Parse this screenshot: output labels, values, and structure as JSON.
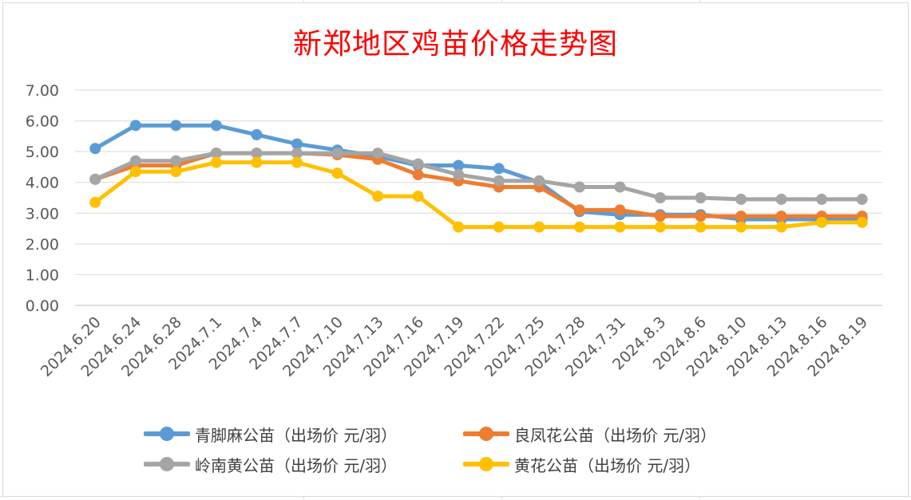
{
  "chart_data": {
    "type": "line",
    "title": "新郑地区鸡苗价格走势图",
    "categories": [
      "2024.6.20",
      "2024.6.24",
      "2024.6.28",
      "2024.7.1",
      "2024.7.4",
      "2024.7.7",
      "2024.7.10",
      "2024.7.13",
      "2024.7.16",
      "2024.7.19",
      "2024.7.22",
      "2024.7.25",
      "2024.7.28",
      "2024.7.31",
      "2024.8.3",
      "2024.8.6",
      "2024.8.10",
      "2024.8.13",
      "2024.8.16",
      "2024.8.19"
    ],
    "y_ticks": [
      "0.00",
      "1.00",
      "2.00",
      "3.00",
      "4.00",
      "5.00",
      "6.00",
      "7.00"
    ],
    "ylim": [
      0,
      7
    ],
    "grid": true,
    "legend_position": "bottom",
    "series": [
      {
        "name": "青脚麻公苗（出场价 元/羽）",
        "color": "#5b9bd5",
        "values": [
          5.1,
          5.85,
          5.85,
          5.85,
          5.55,
          5.25,
          5.05,
          4.85,
          4.55,
          4.55,
          4.45,
          4.0,
          3.05,
          2.95,
          2.95,
          2.95,
          2.8,
          2.8,
          2.8,
          2.8
        ]
      },
      {
        "name": "良凤花公苗（出场价 元/羽）",
        "color": "#ed7d31",
        "values": [
          4.1,
          4.55,
          4.55,
          4.95,
          4.95,
          4.95,
          4.9,
          4.75,
          4.25,
          4.05,
          3.85,
          3.85,
          3.1,
          3.1,
          2.9,
          2.9,
          2.9,
          2.9,
          2.9,
          2.9
        ]
      },
      {
        "name": "岭南黄公苗（出场价 元/羽）",
        "color": "#a5a5a5",
        "values": [
          4.1,
          4.7,
          4.7,
          4.95,
          4.95,
          4.95,
          4.95,
          4.95,
          4.6,
          4.25,
          4.05,
          4.05,
          3.85,
          3.85,
          3.5,
          3.5,
          3.45,
          3.45,
          3.45,
          3.45
        ]
      },
      {
        "name": "黄花公苗（出场价 元/羽）",
        "color": "#ffc000",
        "values": [
          3.35,
          4.35,
          4.35,
          4.65,
          4.65,
          4.65,
          4.3,
          3.55,
          3.55,
          2.55,
          2.55,
          2.55,
          2.55,
          2.55,
          2.55,
          2.55,
          2.55,
          2.55,
          2.7,
          2.7
        ]
      }
    ]
  }
}
